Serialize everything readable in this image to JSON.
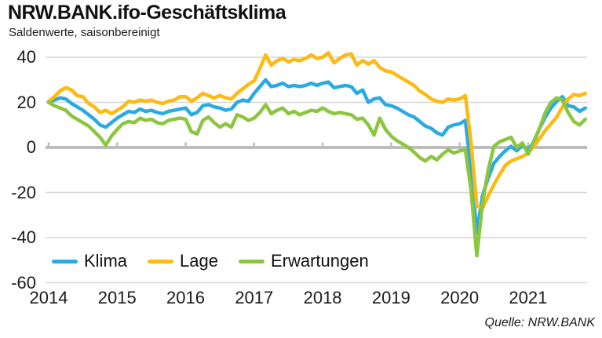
{
  "header": {
    "title": "NRW.BANK.ifo-Geschäftsklima",
    "subtitle": "Saldenwerte, saisonbereinigt"
  },
  "source": "Quelle: NRW.BANK",
  "colors": {
    "klima": "#29ABE2",
    "lage": "#FCBA12",
    "erwartungen": "#8CC63F",
    "gridline": "#D6D6D6",
    "zero_line": "#BDBDBD",
    "text": "#1A1A1A"
  },
  "legend": [
    {
      "label": "Klima",
      "color": "#29ABE2"
    },
    {
      "label": "Lage",
      "color": "#FCBA12"
    },
    {
      "label": "Erwartungen",
      "color": "#8CC63F"
    }
  ],
  "chart_data": {
    "type": "line",
    "title": "NRW.BANK.ifo-Geschäftsklima",
    "subtitle": "Saldenwerte, saisonbereinigt",
    "frequency": "monthly",
    "x_start": "2014-01",
    "x_end": "2021-11",
    "x_tick_labels": [
      "2014",
      "2015",
      "2016",
      "2017",
      "2018",
      "2019",
      "2020",
      "2021"
    ],
    "y_ticks": [
      40,
      20,
      0,
      -20,
      -40,
      -60
    ],
    "ylim": [
      -60,
      45
    ],
    "grid": "horizontal",
    "legend_position": "inside-bottom-left",
    "source_note": "Quelle: NRW.BANK",
    "series": [
      {
        "name": "Klima",
        "color": "#29ABE2",
        "values": [
          20.5,
          21,
          22,
          21.5,
          19.5,
          18,
          16.5,
          14.5,
          12.5,
          10,
          9,
          11,
          13,
          14.5,
          16,
          15.5,
          17,
          16,
          16.5,
          15.5,
          15,
          16,
          16.5,
          17,
          17.5,
          14.5,
          15.5,
          18.5,
          19,
          18,
          17.5,
          16.5,
          17,
          20,
          21,
          20.5,
          24,
          27,
          30,
          27,
          27.5,
          28.5,
          27,
          27.5,
          27,
          27.5,
          28.5,
          27.5,
          28.5,
          29,
          26.5,
          27,
          27.5,
          27,
          24,
          25.5,
          20,
          21.5,
          22,
          19,
          18.5,
          17.5,
          16,
          14.5,
          13.5,
          11.5,
          9.5,
          8.5,
          6.5,
          5.5,
          9,
          10,
          10.5,
          12,
          -10,
          -38,
          -21.5,
          -13.5,
          -7,
          -4,
          -1.5,
          0.5,
          -1.5,
          1,
          -1,
          2.5,
          8.5,
          13.5,
          17.5,
          20.5,
          22.5,
          18.5,
          18,
          16,
          17.5
        ]
      },
      {
        "name": "Lage",
        "color": "#FCBA12",
        "values": [
          20.5,
          22.5,
          25,
          26.5,
          25.5,
          23,
          22.5,
          19.5,
          18,
          15.5,
          16.5,
          15,
          16.5,
          18,
          20.5,
          20,
          21,
          20.5,
          21,
          20,
          19.5,
          20.5,
          21,
          22.5,
          22.5,
          20.5,
          22,
          24,
          23,
          22,
          23,
          22,
          21.5,
          24,
          26,
          28,
          29.5,
          35,
          41,
          36.5,
          38.5,
          39.5,
          38,
          39,
          38.5,
          39.5,
          41,
          39.5,
          40,
          42,
          37.5,
          39.5,
          41,
          41.5,
          36.5,
          38.5,
          37,
          38.5,
          35.5,
          34,
          33.5,
          32,
          30.5,
          29,
          27.5,
          25,
          23.5,
          21.5,
          20.5,
          20,
          21.5,
          21,
          21.5,
          23,
          2,
          -26,
          -27,
          -21.5,
          -16.5,
          -12,
          -8,
          -6,
          -5,
          -4,
          -2.5,
          0.5,
          4,
          7.5,
          10.5,
          13.5,
          18,
          21.5,
          23.5,
          23,
          24
        ]
      },
      {
        "name": "Erwartungen",
        "color": "#8CC63F",
        "values": [
          20,
          18.5,
          17.5,
          16.5,
          14,
          12.5,
          11,
          9.5,
          7,
          4.5,
          1,
          5,
          8,
          10.5,
          11.5,
          11,
          13,
          12,
          12.5,
          11,
          10.5,
          12,
          12.5,
          13,
          12.5,
          7,
          6,
          12,
          13.5,
          11,
          9,
          10.5,
          9,
          14.5,
          13.5,
          12,
          13,
          15.5,
          19,
          15,
          16.5,
          17.5,
          15,
          16,
          14.5,
          15.5,
          16.5,
          16,
          17.5,
          16,
          15,
          15.5,
          15,
          14.5,
          12.5,
          13,
          10,
          5.5,
          13,
          8,
          5,
          3,
          1.5,
          0,
          -2,
          -4.5,
          -6,
          -4,
          -5.5,
          -3,
          -1,
          -2.5,
          -1.5,
          -1,
          -19,
          -48,
          -25,
          -10,
          0.5,
          2.5,
          3.5,
          4.5,
          0,
          2,
          -3,
          3,
          8.5,
          15.5,
          20,
          22,
          21,
          15.5,
          11.5,
          10,
          12.5
        ]
      }
    ]
  }
}
